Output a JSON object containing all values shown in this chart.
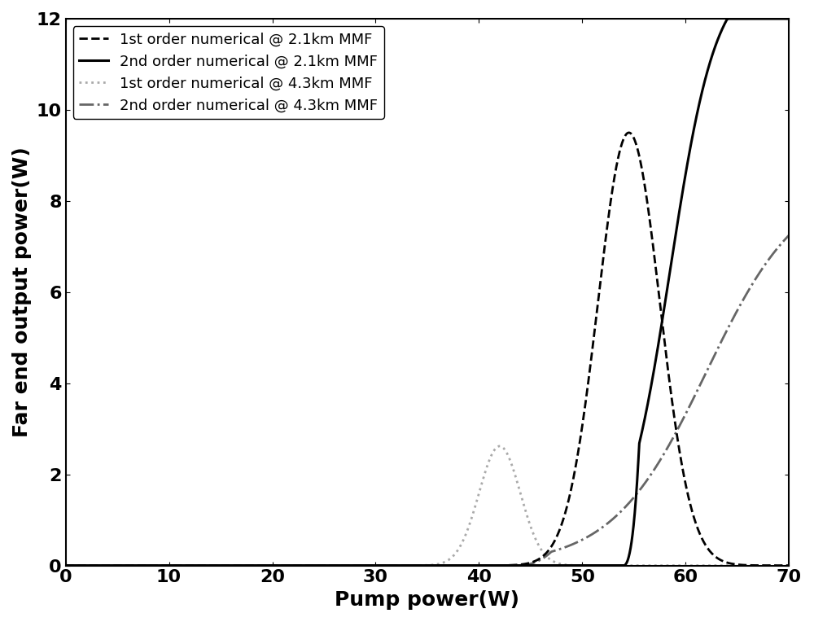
{
  "xlabel": "Pump power(W)",
  "ylabel": "Far end output power(W)",
  "xlim": [
    0,
    70
  ],
  "ylim": [
    0,
    12
  ],
  "xticks": [
    0,
    10,
    20,
    30,
    40,
    50,
    60,
    70
  ],
  "yticks": [
    0,
    2,
    4,
    6,
    8,
    10,
    12
  ],
  "legend": [
    {
      "label": "1st order numerical @ 2.1km MMF",
      "color": "#000000",
      "linestyle": "--",
      "linewidth": 2.0
    },
    {
      "label": "2nd order numerical @ 2.1km MMF",
      "color": "#000000",
      "linestyle": "-",
      "linewidth": 2.2
    },
    {
      "label": "1st order numerical @ 4.3km MMF",
      "color": "#aaaaaa",
      "linestyle": ":",
      "linewidth": 2.0
    },
    {
      "label": "2nd order numerical @ 4.3km MMF",
      "color": "#666666",
      "linestyle": "-.",
      "linewidth": 2.0
    }
  ],
  "figsize": [
    10,
    7.64
  ],
  "dpi": 100,
  "fontsize_label": 18,
  "fontsize_tick": 16,
  "fontsize_legend": 13
}
